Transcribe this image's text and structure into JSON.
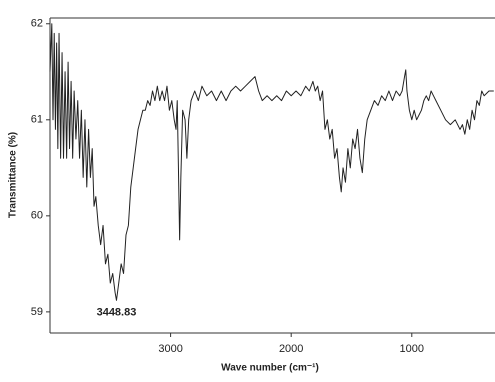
{
  "chart_data": {
    "type": "line",
    "xlabel": "Wave number (cm⁻¹)",
    "ylabel": "Transmittance (%)",
    "xlim": [
      4000,
      310
    ],
    "ylim": [
      58.78,
      62.06
    ],
    "xticks": [
      3000,
      2000,
      1000
    ],
    "yticks": [
      59,
      60,
      61,
      62
    ],
    "color": "#222222",
    "annotations": [
      {
        "text": "3448.83",
        "x": 3448.83,
        "y": 59.12
      }
    ],
    "x": [
      4000,
      3985,
      3975,
      3965,
      3955,
      3945,
      3935,
      3925,
      3912,
      3900,
      3888,
      3875,
      3862,
      3850,
      3838,
      3825,
      3812,
      3800,
      3785,
      3770,
      3755,
      3740,
      3725,
      3710,
      3695,
      3680,
      3665,
      3650,
      3635,
      3620,
      3600,
      3580,
      3560,
      3540,
      3520,
      3500,
      3480,
      3460,
      3448.83,
      3430,
      3410,
      3390,
      3370,
      3350,
      3330,
      3310,
      3290,
      3270,
      3250,
      3230,
      3210,
      3190,
      3170,
      3150,
      3130,
      3110,
      3090,
      3070,
      3050,
      3030,
      3010,
      2990,
      2970,
      2955,
      2945,
      2935,
      2925,
      2915,
      2900,
      2880,
      2865,
      2850,
      2830,
      2800,
      2770,
      2740,
      2700,
      2660,
      2620,
      2580,
      2540,
      2500,
      2460,
      2420,
      2380,
      2340,
      2300,
      2270,
      2240,
      2200,
      2160,
      2120,
      2080,
      2040,
      2000,
      1960,
      1920,
      1880,
      1850,
      1820,
      1800,
      1780,
      1760,
      1740,
      1720,
      1700,
      1680,
      1660,
      1640,
      1620,
      1600,
      1585,
      1570,
      1550,
      1530,
      1510,
      1490,
      1470,
      1450,
      1430,
      1410,
      1390,
      1370,
      1340,
      1310,
      1280,
      1250,
      1220,
      1190,
      1160,
      1130,
      1100,
      1080,
      1060,
      1050,
      1040,
      1020,
      1000,
      980,
      960,
      940,
      920,
      900,
      880,
      860,
      840,
      820,
      800,
      760,
      720,
      680,
      640,
      600,
      580,
      560,
      540,
      520,
      500,
      480,
      460,
      440,
      420,
      400,
      360,
      320
    ],
    "values": [
      61.5,
      62.0,
      61.0,
      61.9,
      60.9,
      61.8,
      60.7,
      61.9,
      60.6,
      61.7,
      60.6,
      61.5,
      60.6,
      61.6,
      60.7,
      61.4,
      60.6,
      61.3,
      60.8,
      61.2,
      60.6,
      61.1,
      60.4,
      61.0,
      60.3,
      60.9,
      60.4,
      60.7,
      60.1,
      60.2,
      59.9,
      59.7,
      59.9,
      59.5,
      59.6,
      59.3,
      59.4,
      59.2,
      59.12,
      59.3,
      59.5,
      59.4,
      59.8,
      59.9,
      60.3,
      60.5,
      60.7,
      60.9,
      61.0,
      61.1,
      61.1,
      61.2,
      61.15,
      61.3,
      61.2,
      61.35,
      61.2,
      61.3,
      61.2,
      61.35,
      61.1,
      61.2,
      61.0,
      60.9,
      61.2,
      60.5,
      59.75,
      60.4,
      61.1,
      61.0,
      60.6,
      61.0,
      61.2,
      61.3,
      61.2,
      61.35,
      61.25,
      61.3,
      61.2,
      61.3,
      61.2,
      61.3,
      61.35,
      61.3,
      61.35,
      61.4,
      61.45,
      61.3,
      61.2,
      61.25,
      61.2,
      61.25,
      61.2,
      61.3,
      61.25,
      61.3,
      61.25,
      61.35,
      61.3,
      61.4,
      61.3,
      61.35,
      61.2,
      61.3,
      60.9,
      61.0,
      60.8,
      60.9,
      60.6,
      60.7,
      60.4,
      60.25,
      60.5,
      60.35,
      60.7,
      60.5,
      60.8,
      60.7,
      60.9,
      60.6,
      60.45,
      60.8,
      61.0,
      61.1,
      61.2,
      61.15,
      61.25,
      61.2,
      61.3,
      61.2,
      61.3,
      61.25,
      61.3,
      61.45,
      61.52,
      61.3,
      61.1,
      61.0,
      61.1,
      61.0,
      61.05,
      61.1,
      61.2,
      61.25,
      61.2,
      61.3,
      61.25,
      61.2,
      61.1,
      61.0,
      60.95,
      61.0,
      60.9,
      60.95,
      60.85,
      61.0,
      60.9,
      61.1,
      61.0,
      61.2,
      61.15,
      61.3,
      61.25,
      61.3,
      61.3
    ]
  }
}
